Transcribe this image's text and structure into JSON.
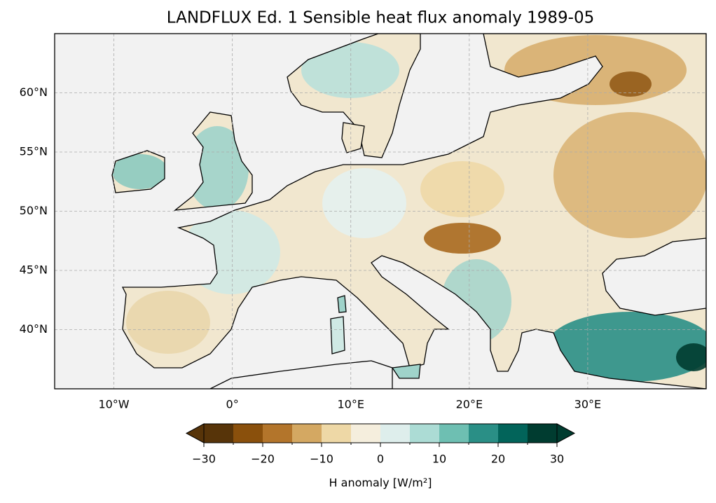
{
  "chart_data": {
    "type": "map",
    "title": "LANDFLUX Ed. 1 Sensible heat flux anomaly 1989-05",
    "xlim": [
      -15,
      40
    ],
    "ylim": [
      35,
      65
    ],
    "xticks": [
      {
        "value": -10,
        "label": "10°W"
      },
      {
        "value": 0,
        "label": "0°"
      },
      {
        "value": 10,
        "label": "10°E"
      },
      {
        "value": 20,
        "label": "20°E"
      },
      {
        "value": 30,
        "label": "30°E"
      }
    ],
    "yticks": [
      {
        "value": 40,
        "label": "40°N"
      },
      {
        "value": 45,
        "label": "45°N"
      },
      {
        "value": 50,
        "label": "50°N"
      },
      {
        "value": 55,
        "label": "55°N"
      },
      {
        "value": 60,
        "label": "60°N"
      }
    ],
    "grid": true,
    "colorbar": {
      "label": "H anomaly [W/m²]",
      "levels": [
        -30,
        -25,
        -20,
        -15,
        -10,
        -5,
        0,
        5,
        10,
        15,
        20,
        25,
        30
      ],
      "colors": [
        "#573409",
        "#8a500c",
        "#b3752b",
        "#d4a862",
        "#eed8a6",
        "#f5eedd",
        "#deeeec",
        "#acdcd5",
        "#6ebfb2",
        "#2a8f86",
        "#02645a",
        "#003c30"
      ],
      "under_color": "#573409",
      "over_color": "#003c30",
      "ticks": [
        {
          "value": -30,
          "label": "−30"
        },
        {
          "value": -20,
          "label": "−20"
        },
        {
          "value": -10,
          "label": "−10"
        },
        0,
        10,
        20,
        30
      ]
    }
  }
}
